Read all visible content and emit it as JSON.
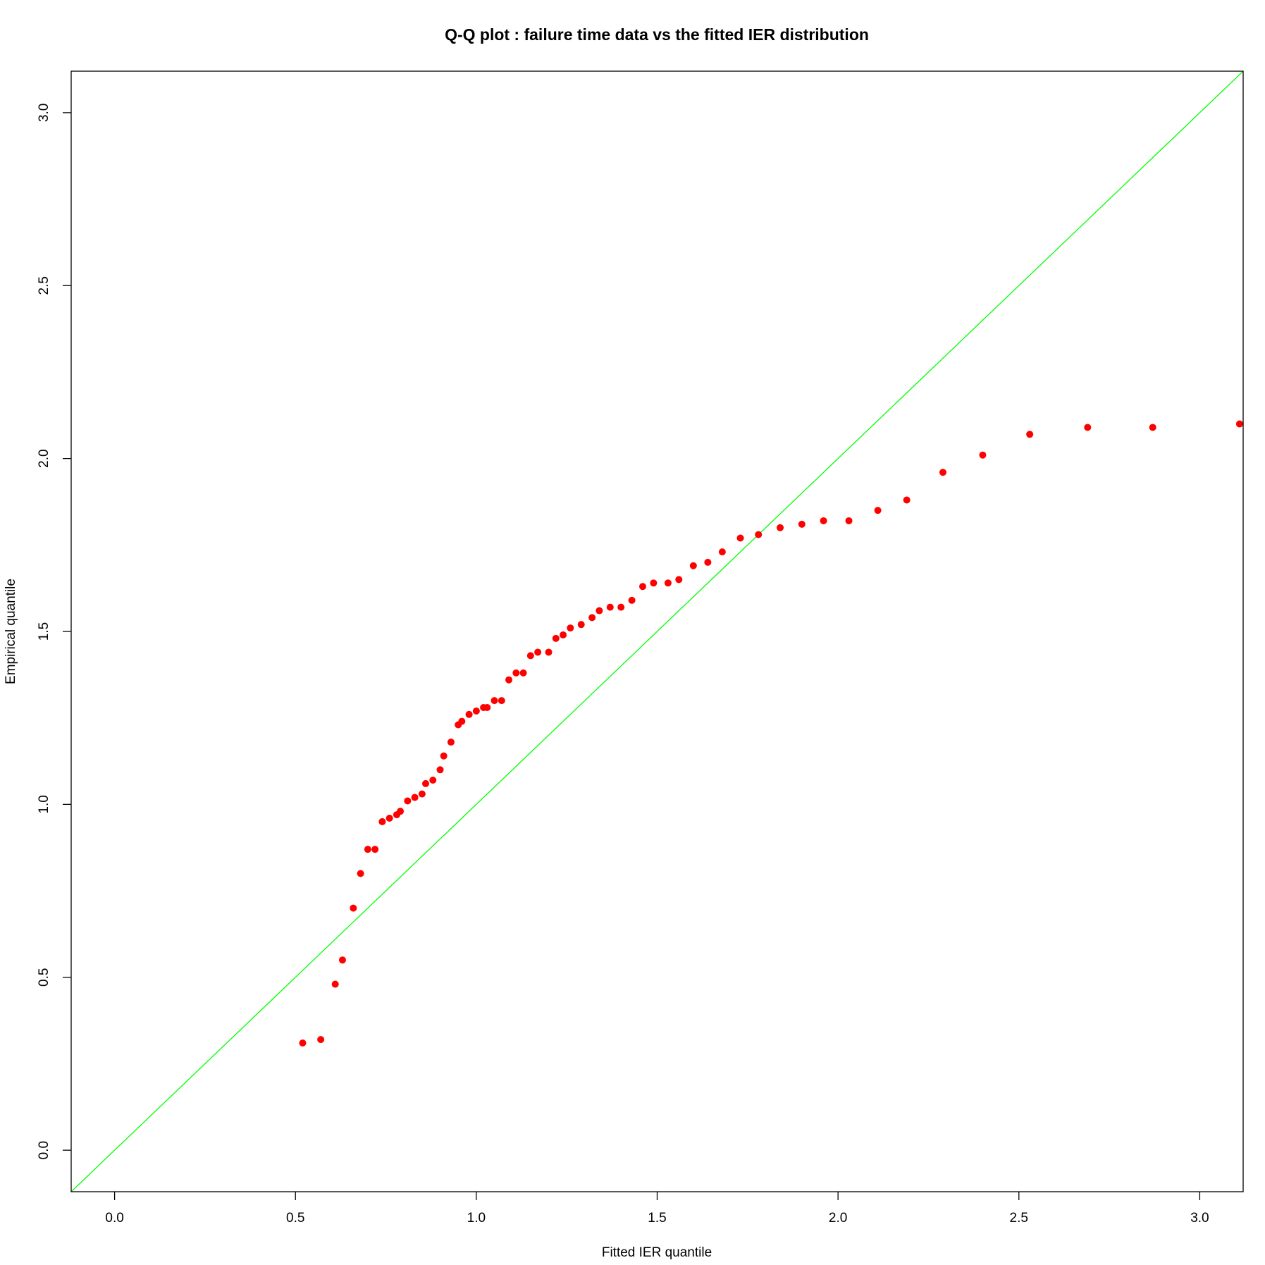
{
  "chart_data": {
    "type": "scatter",
    "title": "Q-Q plot : failure time data vs the fitted IER distribution",
    "x_label": "Fitted IER quantile",
    "y_label": "Empirical quantile",
    "color": "#ff0000",
    "abline": {
      "intercept": 0,
      "slope": 1,
      "color": "#00ff00"
    },
    "xlim": [
      -0.12,
      3.12
    ],
    "ylim": [
      -0.12,
      3.12
    ],
    "xticks": [
      {
        "value": 0,
        "label": "0.0"
      },
      0.5,
      {
        "value": 1,
        "label": "1.0"
      },
      1.5,
      {
        "value": 2,
        "label": "2.0"
      },
      2.5,
      {
        "value": 3,
        "label": "3.0"
      }
    ],
    "yticks": [
      {
        "value": 0,
        "label": "0.0"
      },
      0.5,
      {
        "value": 1,
        "label": "1.0"
      },
      1.5,
      {
        "value": 2,
        "label": "2.0"
      },
      2.5,
      {
        "value": 3,
        "label": "3.0"
      }
    ],
    "x": [
      0.52,
      0.57,
      0.61,
      0.63,
      0.66,
      0.68,
      0.7,
      0.72,
      0.74,
      0.76,
      0.78,
      0.79,
      0.81,
      0.83,
      0.85,
      0.86,
      0.88,
      0.9,
      0.91,
      0.93,
      0.95,
      0.96,
      0.98,
      1.0,
      1.02,
      1.03,
      1.05,
      1.07,
      1.09,
      1.11,
      1.13,
      1.15,
      1.17,
      1.2,
      1.22,
      1.24,
      1.26,
      1.29,
      1.32,
      1.34,
      1.37,
      1.4,
      1.43,
      1.46,
      1.49,
      1.53,
      1.56,
      1.6,
      1.64,
      1.68,
      1.73,
      1.78,
      1.84,
      1.9,
      1.96,
      2.03,
      2.11,
      2.19,
      2.29,
      2.4,
      2.53,
      2.69,
      2.87,
      3.11
    ],
    "values": [
      0.31,
      0.32,
      0.48,
      0.55,
      0.7,
      0.8,
      0.87,
      0.87,
      0.95,
      0.96,
      0.97,
      0.98,
      1.01,
      1.02,
      1.03,
      1.06,
      1.07,
      1.1,
      1.14,
      1.18,
      1.23,
      1.24,
      1.26,
      1.27,
      1.28,
      1.28,
      1.3,
      1.3,
      1.36,
      1.38,
      1.38,
      1.43,
      1.44,
      1.44,
      1.48,
      1.49,
      1.51,
      1.52,
      1.54,
      1.56,
      1.57,
      1.57,
      1.59,
      1.63,
      1.64,
      1.64,
      1.65,
      1.69,
      1.7,
      1.73,
      1.77,
      1.78,
      1.8,
      1.81,
      1.82,
      1.82,
      1.85,
      1.88,
      1.96,
      2.01,
      2.07,
      2.09,
      2.09,
      2.1
    ]
  }
}
